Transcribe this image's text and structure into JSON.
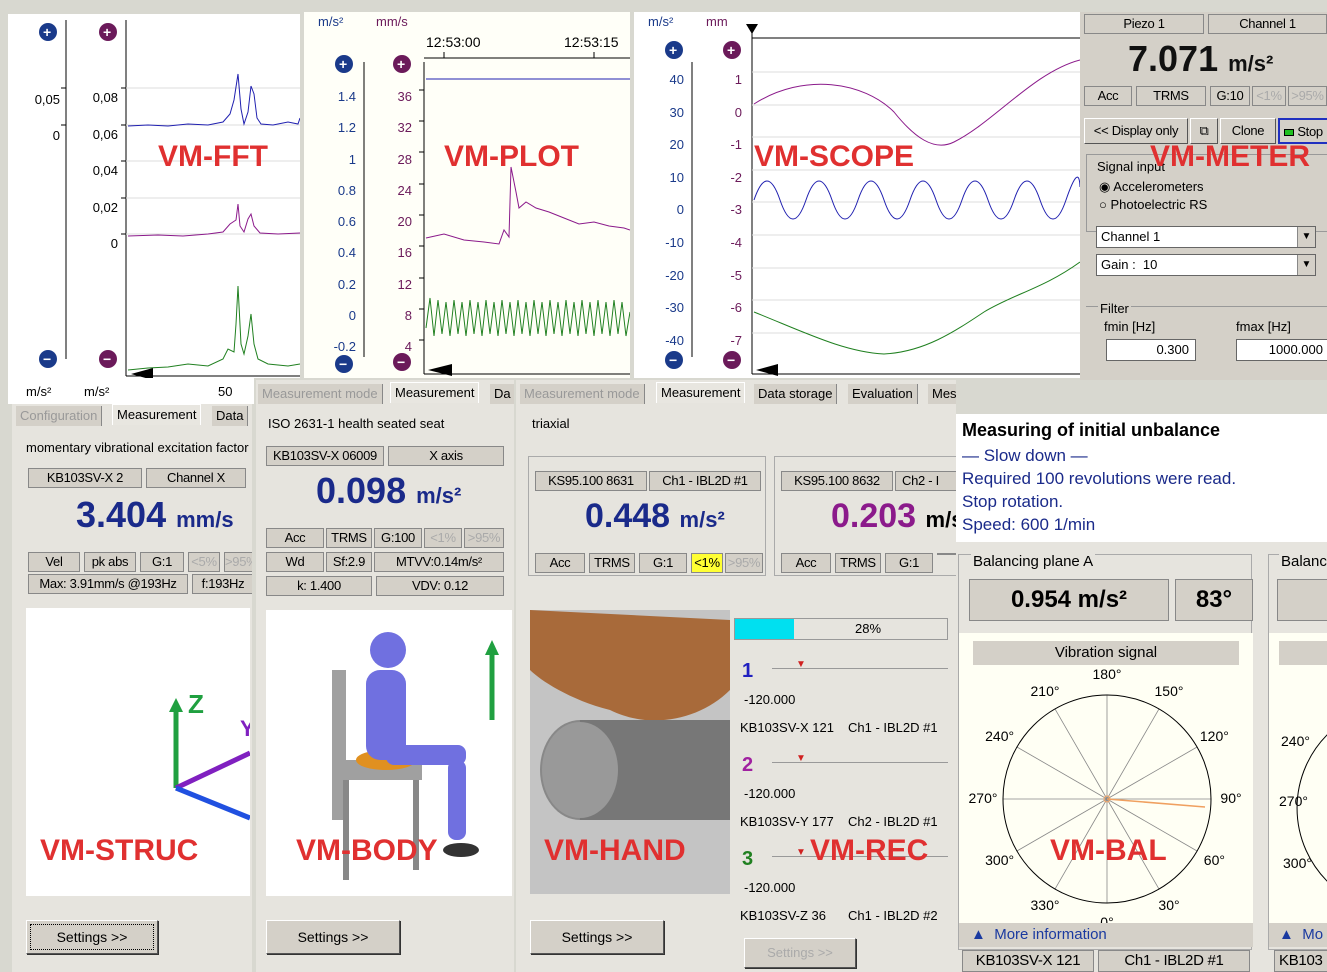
{
  "labels": {
    "fft": "VM-FFT",
    "plot": "VM-PLOT",
    "scope": "VM-SCOPE",
    "meter": "VM-METER",
    "struc": "VM-STRUC",
    "body": "VM-BODY",
    "hand": "VM-HAND",
    "rec": "VM-REC",
    "bal": "VM-BAL"
  },
  "fft": {
    "unit_left": "m/s²",
    "unit_right": "m/s²",
    "x_tick": "50",
    "left_ticks": [
      "0,05",
      "0"
    ],
    "right_ticks": [
      "0,08",
      "0,06",
      "0,04",
      "0,02",
      "0"
    ]
  },
  "plot": {
    "unit_left": "m/s²",
    "unit_right": "mm/s",
    "time1": "12:53:00",
    "time2": "12:53:15",
    "left_ticks": [
      "1.4",
      "1.2",
      "1",
      "0.8",
      "0.6",
      "0.4",
      "0.2",
      "0",
      "-0.2"
    ],
    "right_ticks": [
      "36",
      "32",
      "28",
      "24",
      "20",
      "16",
      "12",
      "8",
      "4"
    ]
  },
  "scope": {
    "unit_left": "m/s²",
    "unit_right": "mm",
    "left_ticks": [
      "40",
      "30",
      "20",
      "10",
      "0",
      "-10",
      "-20",
      "-30",
      "-40"
    ],
    "right_ticks": [
      "1",
      "0",
      "-1",
      "-2",
      "-3",
      "-4",
      "-5",
      "-6",
      "-7"
    ]
  },
  "meter": {
    "sensor": "Piezo 1",
    "channel": "Channel 1",
    "value": "7.071",
    "unit": "m/s²",
    "acc": "Acc",
    "trms": "TRMS",
    "gain": "G:10",
    "lo": "<1%",
    "hi": ">95%",
    "display_only": "<< Display only",
    "clone": "Clone",
    "stop": "Stop",
    "signal_input": "Signal input",
    "opt1": "Accelerometers",
    "opt2": "Photoelectric RS",
    "channel_sel": "Channel 1",
    "gain_label": "Gain :",
    "gain_val": "10",
    "filter": "Filter",
    "fmin_label": "fmin [Hz]",
    "fmax_label": "fmax [Hz]",
    "fmin": "0.300",
    "fmax": "1000.000"
  },
  "struc": {
    "tab1": "Configuration",
    "tab2": "Measurement",
    "tab3": "Data",
    "desc": "momentary vibrational excitation factor",
    "sensor": "KB103SV-X 2",
    "channel": "Channel X",
    "value": "3.404",
    "unit": "mm/s",
    "mode": "Vel",
    "pk": "pk abs",
    "gain": "G:1",
    "lo": "<5%",
    "hi": ">95%",
    "max": "Max: 3.91mm/s @193Hz",
    "freq": "f:193Hz",
    "settings": "Settings >>"
  },
  "body": {
    "tab1": "Measurement mode",
    "tab2": "Measurement",
    "tab3": "Da",
    "desc": "ISO 2631-1 health seated seat",
    "sensor": "KB103SV-X 06009",
    "axis": "X axis",
    "value": "0.098",
    "unit": "m/s²",
    "acc": "Acc",
    "trms": "TRMS",
    "gain": "G:100",
    "lo": "<1%",
    "hi": ">95%",
    "wd": "Wd",
    "sf": "Sf:2.9",
    "mtvv": "MTVV:0.14m/s²",
    "k": "k: 1.400",
    "vdv": "VDV: 0.12",
    "settings": "Settings >>"
  },
  "hand": {
    "tabs": [
      "Measurement mode",
      "Measurement",
      "Data storage",
      "Evaluation",
      "Messengers"
    ],
    "desc": "triaxial",
    "ch1": {
      "sensor": "KS95.100 8631",
      "channel": "Ch1 - IBL2D #1",
      "value": "0.448",
      "unit": "m/s²",
      "acc": "Acc",
      "trms": "TRMS",
      "gain": "G:1",
      "lo": "<1%",
      "hi": ">95%"
    },
    "ch2": {
      "sensor": "KS95.100 8632",
      "channel": "Ch2 - I",
      "value": "0.203",
      "unit": "m/s²",
      "acc": "Acc",
      "trms": "TRMS",
      "gain": "G:1"
    },
    "settings": "Settings >>"
  },
  "rec": {
    "progress_text": "28%",
    "progress_value": 0.28,
    "tracks": [
      {
        "num": "1",
        "val": "-120.000",
        "sensor": "KB103SV-X 121",
        "channel": "Ch1 - IBL2D #1",
        "color": "#2020c0"
      },
      {
        "num": "2",
        "val": "-120.000",
        "sensor": "KB103SV-Y 177",
        "channel": "Ch2 - IBL2D #1",
        "color": "#a020a0"
      },
      {
        "num": "3",
        "val": "-120.000",
        "sensor": "KB103SV-Z 36",
        "channel": "Ch1 - IBL2D #2",
        "color": "#208020"
      }
    ],
    "settings": "Settings >>"
  },
  "bal": {
    "title": "Measuring of initial unbalance",
    "lines": [
      "— Slow down —",
      "Required 100 revolutions were read.",
      "Stop rotation.",
      "Speed: 600 1/min"
    ],
    "plane": "Balancing plane A",
    "plane2": "Balanc",
    "value": "0.954 m/s²",
    "angle": "83°",
    "signal": "Vibration signal",
    "angles": [
      "180°",
      "150°",
      "120°",
      "90°",
      "60°",
      "30°",
      "0°",
      "330°",
      "300°",
      "270°",
      "240°",
      "210°"
    ],
    "angles2": [
      "240°",
      "270°",
      "300°"
    ],
    "more": "More information",
    "more2": "Mo",
    "sensor": "KB103SV-X 121",
    "channel": "Ch1 - IBL2D #1",
    "sensor2": "KB103"
  }
}
